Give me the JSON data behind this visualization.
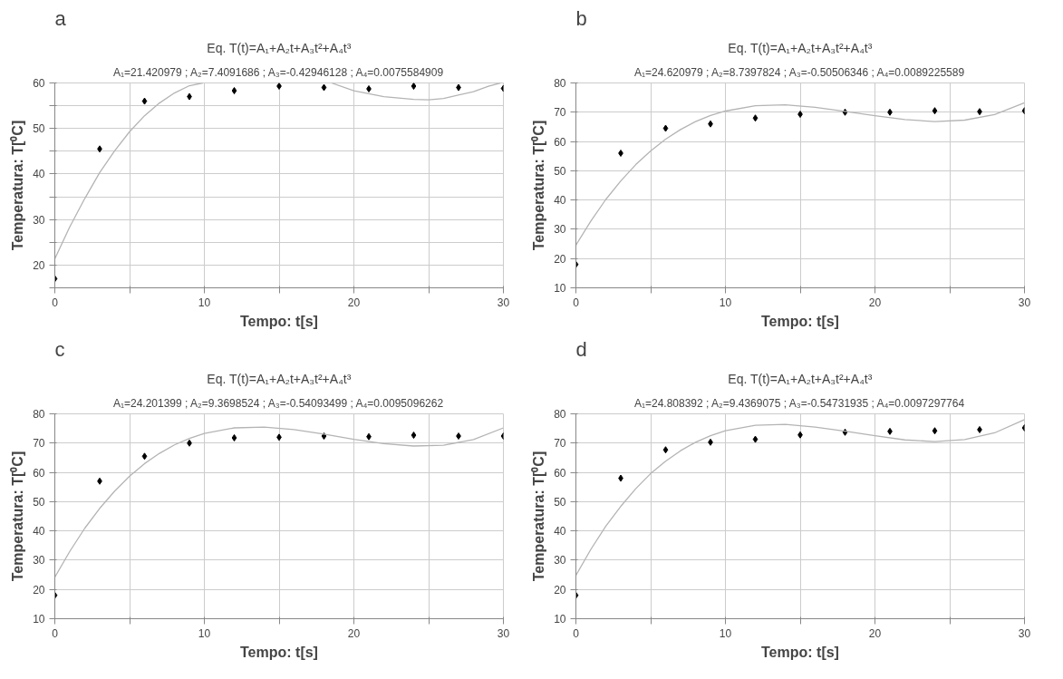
{
  "chart_data": [
    {
      "type": "scatter",
      "annotations": [
        "a"
      ],
      "title": "Eq. T(t)=A₁+A₂t+A₃t²+A₄t³",
      "subtitle": "A₁=21.420979 ; A₂=7.4091686 ; A₃=-0.42946128 ; A₄=0.0075584909",
      "xlabel": "Tempo: t[s]",
      "ylabel": "Temperatura: T[⁰C]",
      "xlim": [
        0,
        30
      ],
      "ylim": [
        15,
        60
      ],
      "xticks": [
        0,
        {
          "value": 5,
          "label": null
        },
        10,
        {
          "value": 15,
          "label": null
        },
        20,
        {
          "value": 25,
          "label": null
        },
        30
      ],
      "yticks": [
        {
          "value": 15,
          "label": null
        },
        20,
        {
          "value": 25,
          "label": null
        },
        30,
        {
          "value": 35,
          "label": null
        },
        40,
        {
          "value": 45,
          "label": null
        },
        50,
        {
          "value": 55,
          "label": null
        },
        60
      ],
      "grid": true,
      "marker": "diamond",
      "series": [
        {
          "type": "scatter",
          "color": "#000000",
          "x": [
            0,
            3,
            6,
            9,
            12,
            15,
            18,
            21,
            24,
            27,
            30
          ],
          "values": [
            17,
            45.5,
            56,
            57,
            58.3,
            59.3,
            59,
            58.7,
            59.3,
            59,
            58.8
          ]
        },
        {
          "type": "line",
          "color": "#b4b4b4",
          "marker": "none",
          "line_style": "solid",
          "x": [
            0,
            1,
            2,
            3,
            4,
            5,
            6,
            7,
            8,
            9,
            9.9,
            11,
            18.5,
            20,
            22,
            24,
            25,
            26,
            28,
            29,
            29.8
          ],
          "values": [
            21.4,
            28.4,
            34.6,
            40.3,
            45.1,
            49.3,
            52.8,
            55.6,
            57.8,
            59.4,
            60,
            null,
            60,
            58.3,
            57,
            56.4,
            56.3,
            56.6,
            58.1,
            59.3,
            60
          ]
        }
      ]
    },
    {
      "type": "scatter",
      "annotations": [
        "b"
      ],
      "title": "Eq. T(t)=A₁+A₂t+A₃t²+A₄t³",
      "subtitle": "A₁=24.620979 ; A₂=8.7397824 ; A₃=-0.50506346 ; A₄=0.0089225589",
      "xlabel": "Tempo: t[s]",
      "ylabel": "Temperatura: T[⁰C]",
      "xlim": [
        0,
        30
      ],
      "ylim": [
        10,
        80
      ],
      "xticks": [
        0,
        {
          "value": 5,
          "label": null
        },
        10,
        {
          "value": 15,
          "label": null
        },
        20,
        {
          "value": 25,
          "label": null
        },
        30
      ],
      "yticks": [
        10,
        20,
        30,
        40,
        50,
        60,
        70,
        80
      ],
      "grid": true,
      "marker": "diamond",
      "series": [
        {
          "type": "scatter",
          "color": "#000000",
          "x": [
            0,
            3,
            6,
            9,
            12,
            15,
            18,
            21,
            24,
            27,
            30
          ],
          "values": [
            18,
            56,
            64.5,
            66,
            68,
            69.3,
            70,
            70,
            70.5,
            70.2,
            70.5
          ]
        },
        {
          "type": "line",
          "color": "#b4b4b4",
          "marker": "none",
          "line_style": "solid",
          "x": [
            0,
            1,
            2,
            3,
            4,
            5,
            6,
            7,
            8,
            9,
            10,
            12,
            14,
            16,
            18,
            20,
            22,
            24,
            26,
            28,
            30
          ],
          "values": [
            24.6,
            32.8,
            40.2,
            46.5,
            52.1,
            56.8,
            60.8,
            64.1,
            66.8,
            68.9,
            70.4,
            72.2,
            72.5,
            71.7,
            70.3,
            68.8,
            67.5,
            66.8,
            67.3,
            69.2,
            73.2
          ]
        }
      ]
    },
    {
      "type": "scatter",
      "annotations": [
        "c"
      ],
      "title": "Eq. T(t)=A₁+A₂t+A₃t²+A₄t³",
      "subtitle": "A₁=24.201399 ; A₂=9.3698524 ; A₃=-0.54093499 ; A₄=0.0095096262",
      "xlabel": "Tempo: t[s]",
      "ylabel": "Temperatura: T[⁰C]",
      "xlim": [
        0,
        30
      ],
      "ylim": [
        10,
        80
      ],
      "xticks": [
        0,
        {
          "value": 5,
          "label": null
        },
        10,
        {
          "value": 15,
          "label": null
        },
        20,
        {
          "value": 25,
          "label": null
        },
        30
      ],
      "yticks": [
        10,
        20,
        30,
        40,
        50,
        60,
        70,
        80
      ],
      "grid": true,
      "marker": "diamond",
      "series": [
        {
          "type": "scatter",
          "color": "#000000",
          "x": [
            0,
            3,
            6,
            9,
            12,
            15,
            18,
            21,
            24,
            27,
            30
          ],
          "values": [
            18,
            57,
            65.5,
            70,
            71.8,
            72,
            72.4,
            72.2,
            72.7,
            72.4,
            72.4
          ]
        },
        {
          "type": "line",
          "color": "#b4b4b4",
          "marker": "none",
          "line_style": "solid",
          "x": [
            0,
            1,
            2,
            3,
            4,
            5,
            6,
            7,
            8,
            9,
            10,
            12,
            14,
            16,
            18,
            20,
            22,
            24,
            26,
            28,
            30
          ],
          "values": [
            24.2,
            33,
            40.9,
            47.7,
            53.6,
            58.7,
            63,
            66.5,
            69.4,
            71.6,
            73.3,
            75.2,
            75.5,
            74.6,
            73.1,
            71.3,
            69.8,
            69,
            69.3,
            71.2,
            75.2
          ]
        }
      ]
    },
    {
      "type": "scatter",
      "annotations": [
        "d"
      ],
      "title": "Eq. T(t)=A₁+A₂t+A₃t²+A₄t³",
      "subtitle": "A₁=24.808392 ; A₂=9.4369075 ; A₃=-0.54731935 ; A₄=0.0097297764",
      "xlabel": "Tempo: t[s]",
      "ylabel": "Temperatura: T[⁰C]",
      "xlim": [
        0,
        30
      ],
      "ylim": [
        10,
        80
      ],
      "xticks": [
        0,
        {
          "value": 5,
          "label": null
        },
        10,
        {
          "value": 15,
          "label": null
        },
        20,
        {
          "value": 25,
          "label": null
        },
        30
      ],
      "yticks": [
        10,
        20,
        30,
        40,
        50,
        60,
        70,
        80
      ],
      "grid": true,
      "marker": "diamond",
      "series": [
        {
          "type": "scatter",
          "color": "#000000",
          "x": [
            0,
            3,
            6,
            9,
            12,
            15,
            18,
            21,
            24,
            27,
            30
          ],
          "values": [
            18,
            58,
            67.7,
            70.3,
            71.3,
            72.8,
            73.7,
            74,
            74.2,
            74.6,
            75.2
          ]
        },
        {
          "type": "line",
          "color": "#b4b4b4",
          "marker": "none",
          "line_style": "solid",
          "x": [
            0,
            1,
            2,
            3,
            4,
            5,
            6,
            7,
            8,
            9,
            10,
            12,
            14,
            16,
            18,
            20,
            22,
            24,
            26,
            28,
            30
          ],
          "values": [
            24.8,
            33.7,
            41.6,
            48.4,
            54.4,
            59.6,
            63.8,
            67.4,
            70.3,
            72.5,
            74.2,
            76.1,
            76.4,
            75.5,
            74.1,
            72.5,
            71.1,
            70.5,
            71.2,
            73.5,
            78
          ]
        }
      ]
    }
  ]
}
